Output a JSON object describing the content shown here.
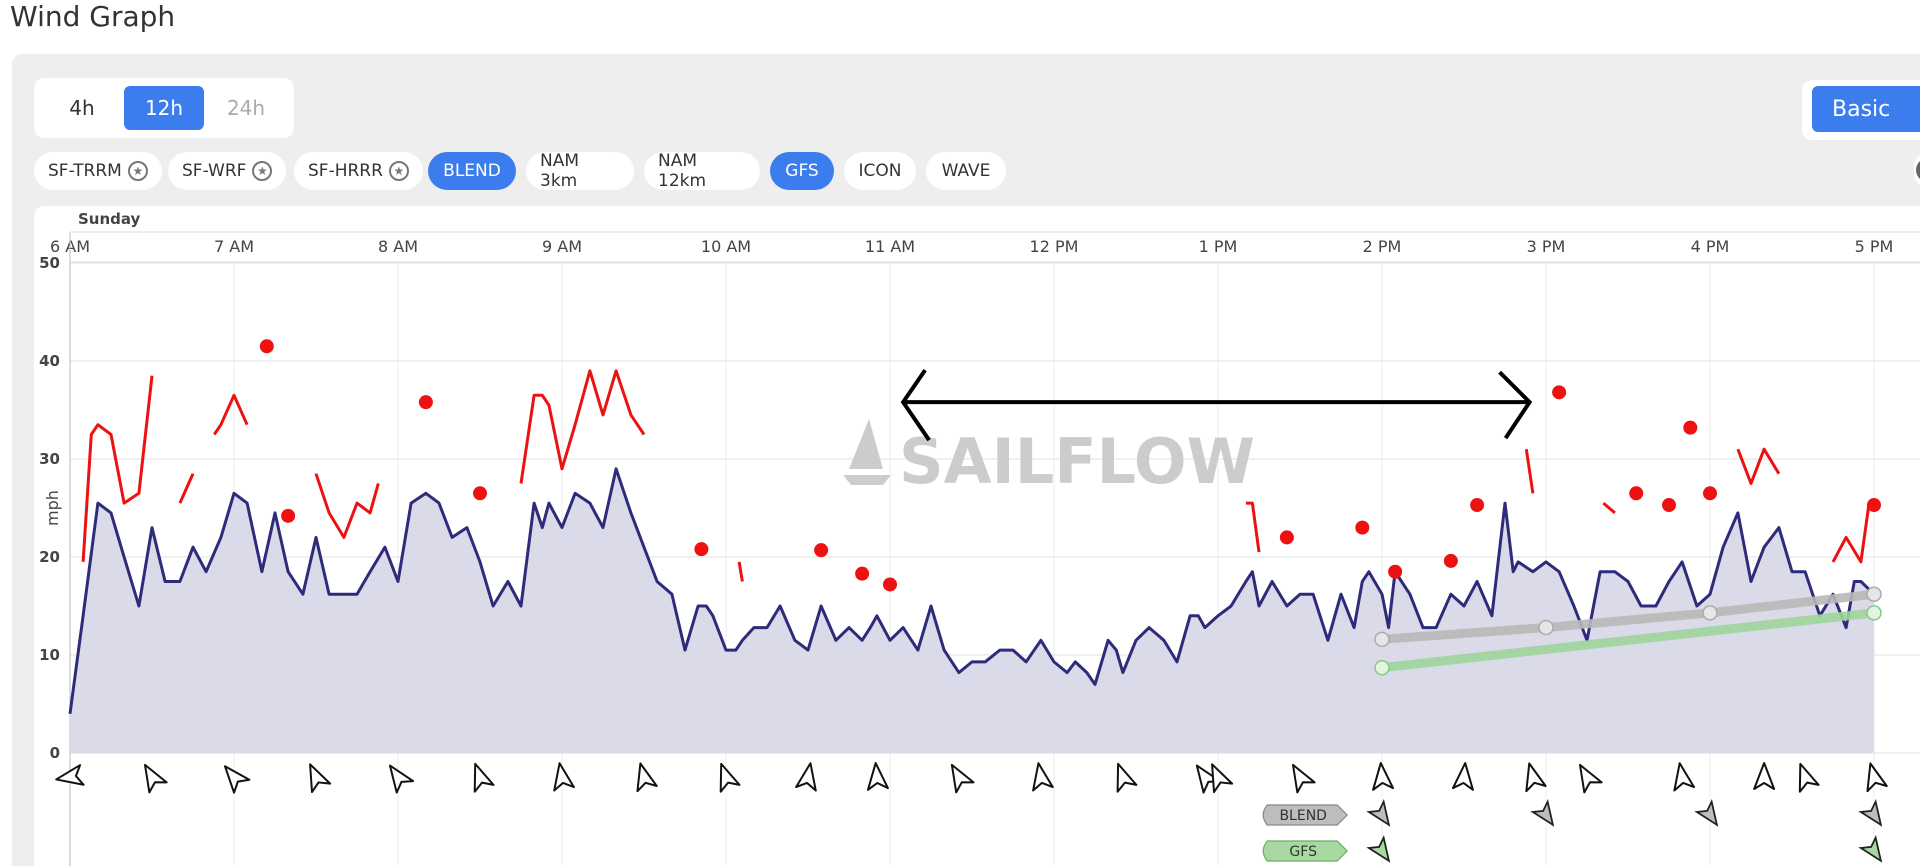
{
  "page_title": "Wind Graph",
  "ranges": [
    {
      "label": "4h",
      "state": "normal"
    },
    {
      "label": "12h",
      "state": "active"
    },
    {
      "label": "24h",
      "state": "disabled"
    }
  ],
  "mode_button": "Basic",
  "models": [
    {
      "label": "SF-TRRM",
      "star": true,
      "active": false
    },
    {
      "label": "SF-WRF",
      "star": true,
      "active": false
    },
    {
      "label": "SF-HRRR",
      "star": true,
      "active": false
    },
    {
      "label": "BLEND",
      "star": false,
      "active": true
    },
    {
      "label": "NAM 3km",
      "star": false,
      "active": false
    },
    {
      "label": "NAM 12km",
      "star": false,
      "active": false
    },
    {
      "label": "GFS",
      "star": false,
      "active": true
    },
    {
      "label": "ICON",
      "star": false,
      "active": false
    },
    {
      "label": "WAVE",
      "star": false,
      "active": false
    }
  ],
  "watermark": "SAILFLOW",
  "colors": {
    "accent": "#3b7ded",
    "observed": "#2e2c7a",
    "area": "#d8d8e8",
    "gust": "#ee1111",
    "blend": "#b8b8b8",
    "gfs": "#9fd49a"
  },
  "chart_data": {
    "type": "line",
    "day_label": "Sunday",
    "ylabel": "mph",
    "yticks": [
      0,
      10,
      20,
      30,
      40,
      50
    ],
    "ylim": [
      0,
      50
    ],
    "xlim_hours": [
      6.0,
      17.0
    ],
    "xticks": [
      {
        "hour": 6,
        "label": "6 AM"
      },
      {
        "hour": 7,
        "label": "7 AM"
      },
      {
        "hour": 8,
        "label": "8 AM"
      },
      {
        "hour": 9,
        "label": "9 AM"
      },
      {
        "hour": 10,
        "label": "10 AM"
      },
      {
        "hour": 11,
        "label": "11 AM"
      },
      {
        "hour": 12,
        "label": "12 PM"
      },
      {
        "hour": 13,
        "label": "1 PM"
      },
      {
        "hour": 14,
        "label": "2 PM"
      },
      {
        "hour": 15,
        "label": "3 PM"
      },
      {
        "hour": 16,
        "label": "4 PM"
      },
      {
        "hour": 17,
        "label": "5 PM"
      }
    ],
    "observed": [
      [
        6.0,
        4
      ],
      [
        6.08,
        14
      ],
      [
        6.17,
        25.5
      ],
      [
        6.25,
        24.5
      ],
      [
        6.33,
        20
      ],
      [
        6.42,
        15
      ],
      [
        6.5,
        23
      ],
      [
        6.58,
        17.5
      ],
      [
        6.67,
        17.5
      ],
      [
        6.75,
        21
      ],
      [
        6.83,
        18.5
      ],
      [
        6.92,
        22
      ],
      [
        7.0,
        26.5
      ],
      [
        7.08,
        25.5
      ],
      [
        7.17,
        18.5
      ],
      [
        7.25,
        24.5
      ],
      [
        7.33,
        18.5
      ],
      [
        7.42,
        16.2
      ],
      [
        7.5,
        22
      ],
      [
        7.58,
        16.2
      ],
      [
        7.67,
        16.2
      ],
      [
        7.75,
        16.2
      ],
      [
        7.83,
        18.5
      ],
      [
        7.92,
        21
      ],
      [
        8.0,
        17.5
      ],
      [
        8.08,
        25.5
      ],
      [
        8.17,
        26.5
      ],
      [
        8.25,
        25.5
      ],
      [
        8.33,
        22
      ],
      [
        8.42,
        23
      ],
      [
        8.5,
        19.5
      ],
      [
        8.58,
        15
      ],
      [
        8.67,
        17.5
      ],
      [
        8.75,
        15
      ],
      [
        8.83,
        25.5
      ],
      [
        8.88,
        23
      ],
      [
        8.92,
        25.5
      ],
      [
        9.0,
        23
      ],
      [
        9.08,
        26.5
      ],
      [
        9.17,
        25.5
      ],
      [
        9.25,
        23
      ],
      [
        9.33,
        29
      ],
      [
        9.42,
        24.5
      ],
      [
        9.5,
        21
      ],
      [
        9.58,
        17.5
      ],
      [
        9.67,
        16.2
      ],
      [
        9.75,
        10.5
      ],
      [
        9.83,
        15
      ],
      [
        9.88,
        15
      ],
      [
        9.92,
        14
      ],
      [
        10.0,
        10.5
      ],
      [
        10.06,
        10.5
      ],
      [
        10.1,
        11.5
      ],
      [
        10.17,
        12.8
      ],
      [
        10.25,
        12.8
      ],
      [
        10.33,
        15
      ],
      [
        10.42,
        11.5
      ],
      [
        10.5,
        10.5
      ],
      [
        10.58,
        15
      ],
      [
        10.67,
        11.5
      ],
      [
        10.75,
        12.8
      ],
      [
        10.83,
        11.5
      ],
      [
        10.88,
        12.8
      ],
      [
        10.92,
        14
      ],
      [
        11.0,
        11.5
      ],
      [
        11.08,
        12.8
      ],
      [
        11.17,
        10.5
      ],
      [
        11.25,
        15
      ],
      [
        11.33,
        10.5
      ],
      [
        11.42,
        8.2
      ],
      [
        11.5,
        9.3
      ],
      [
        11.58,
        9.3
      ],
      [
        11.67,
        10.5
      ],
      [
        11.75,
        10.5
      ],
      [
        11.83,
        9.3
      ],
      [
        11.92,
        11.5
      ],
      [
        12.0,
        9.3
      ],
      [
        12.08,
        8.2
      ],
      [
        12.13,
        9.3
      ],
      [
        12.2,
        8.2
      ],
      [
        12.25,
        7
      ],
      [
        12.33,
        11.5
      ],
      [
        12.38,
        10.5
      ],
      [
        12.42,
        8.2
      ],
      [
        12.5,
        11.5
      ],
      [
        12.58,
        12.8
      ],
      [
        12.67,
        11.5
      ],
      [
        12.75,
        9.3
      ],
      [
        12.83,
        14
      ],
      [
        12.88,
        14
      ],
      [
        12.92,
        12.8
      ],
      [
        13.0,
        14
      ],
      [
        13.08,
        15
      ],
      [
        13.17,
        17.5
      ],
      [
        13.21,
        18.5
      ],
      [
        13.25,
        15
      ],
      [
        13.33,
        17.5
      ],
      [
        13.42,
        15
      ],
      [
        13.5,
        16.2
      ],
      [
        13.58,
        16.2
      ],
      [
        13.67,
        11.5
      ],
      [
        13.75,
        16.2
      ],
      [
        13.83,
        12.8
      ],
      [
        13.88,
        17.5
      ],
      [
        13.92,
        18.5
      ],
      [
        14.0,
        16.2
      ],
      [
        14.04,
        12.8
      ],
      [
        14.08,
        18.5
      ],
      [
        14.17,
        16.2
      ],
      [
        14.25,
        12.8
      ],
      [
        14.33,
        12.8
      ],
      [
        14.42,
        16.2
      ],
      [
        14.5,
        15
      ],
      [
        14.58,
        17.5
      ],
      [
        14.67,
        14
      ],
      [
        14.75,
        25.5
      ],
      [
        14.8,
        18.5
      ],
      [
        14.83,
        19.5
      ],
      [
        14.92,
        18.5
      ],
      [
        15.0,
        19.5
      ],
      [
        15.08,
        18.5
      ],
      [
        15.17,
        15
      ],
      [
        15.25,
        11.5
      ],
      [
        15.33,
        18.5
      ],
      [
        15.42,
        18.5
      ],
      [
        15.5,
        17.5
      ],
      [
        15.58,
        15
      ],
      [
        15.67,
        15
      ],
      [
        15.75,
        17.5
      ],
      [
        15.83,
        19.5
      ],
      [
        15.92,
        15
      ],
      [
        16.0,
        16.2
      ],
      [
        16.08,
        21
      ],
      [
        16.17,
        24.5
      ],
      [
        16.25,
        17.5
      ],
      [
        16.33,
        21
      ],
      [
        16.42,
        23
      ],
      [
        16.5,
        18.5
      ],
      [
        16.58,
        18.5
      ],
      [
        16.67,
        14
      ],
      [
        16.75,
        16.2
      ],
      [
        16.83,
        12.8
      ],
      [
        16.88,
        17.5
      ],
      [
        16.92,
        17.5
      ],
      [
        17.0,
        16.2
      ]
    ],
    "gust_segments": [
      [
        [
          6.08,
          19.5
        ],
        [
          6.13,
          32.5
        ],
        [
          6.17,
          33.5
        ],
        [
          6.25,
          32.5
        ],
        [
          6.33,
          25.5
        ],
        [
          6.42,
          26.5
        ],
        [
          6.5,
          38.5
        ]
      ],
      [
        [
          6.67,
          25.5
        ],
        [
          6.75,
          28.5
        ]
      ],
      [
        [
          6.88,
          32.5
        ],
        [
          6.92,
          33.5
        ],
        [
          7.0,
          36.5
        ],
        [
          7.08,
          33.5
        ]
      ],
      [
        [
          7.5,
          28.5
        ],
        [
          7.58,
          24.5
        ],
        [
          7.67,
          22
        ],
        [
          7.75,
          25.5
        ],
        [
          7.83,
          24.5
        ],
        [
          7.88,
          27.5
        ]
      ],
      [
        [
          8.75,
          27.5
        ],
        [
          8.83,
          36.5
        ],
        [
          8.88,
          36.5
        ],
        [
          8.92,
          35.5
        ],
        [
          9.0,
          29
        ],
        [
          9.08,
          33.5
        ],
        [
          9.17,
          39
        ],
        [
          9.25,
          34.5
        ],
        [
          9.33,
          39
        ],
        [
          9.42,
          34.5
        ],
        [
          9.5,
          32.5
        ]
      ],
      [
        [
          10.08,
          19.5
        ],
        [
          10.1,
          17.5
        ]
      ],
      [
        [
          13.17,
          25.5
        ],
        [
          13.21,
          25.5
        ],
        [
          13.25,
          20.5
        ]
      ],
      [
        [
          14.88,
          31
        ],
        [
          14.92,
          26.5
        ]
      ],
      [
        [
          15.35,
          25.5
        ],
        [
          15.42,
          24.5
        ]
      ],
      [
        [
          16.17,
          31
        ],
        [
          16.25,
          27.5
        ],
        [
          16.33,
          31
        ],
        [
          16.42,
          28.5
        ]
      ],
      [
        [
          16.75,
          19.5
        ],
        [
          16.83,
          22
        ],
        [
          16.92,
          19.5
        ],
        [
          16.97,
          25.5
        ]
      ]
    ],
    "gust_points": [
      [
        7.2,
        41.5
      ],
      [
        7.33,
        24.2
      ],
      [
        8.17,
        35.8
      ],
      [
        8.5,
        26.5
      ],
      [
        9.85,
        20.8
      ],
      [
        10.58,
        20.7
      ],
      [
        10.83,
        18.3
      ],
      [
        11.0,
        17.2
      ],
      [
        13.42,
        22
      ],
      [
        13.88,
        23
      ],
      [
        14.08,
        18.5
      ],
      [
        14.42,
        19.6
      ],
      [
        14.58,
        25.3
      ],
      [
        15.08,
        36.8
      ],
      [
        15.55,
        26.5
      ],
      [
        15.75,
        25.3
      ],
      [
        15.88,
        33.2
      ],
      [
        16.0,
        26.5
      ],
      [
        17.0,
        25.3
      ]
    ],
    "blend_forecast": [
      [
        14.0,
        11.6
      ],
      [
        15.0,
        12.8
      ],
      [
        16.0,
        14.3
      ],
      [
        17.0,
        16.2
      ]
    ],
    "gfs_forecast": [
      [
        14.0,
        8.7
      ],
      [
        17.0,
        14.3
      ]
    ],
    "model_rows": [
      "BLEND",
      "GFS"
    ],
    "range_marker": {
      "start_hour": 11.08,
      "end_hour": 14.9,
      "level": 35.8
    }
  }
}
